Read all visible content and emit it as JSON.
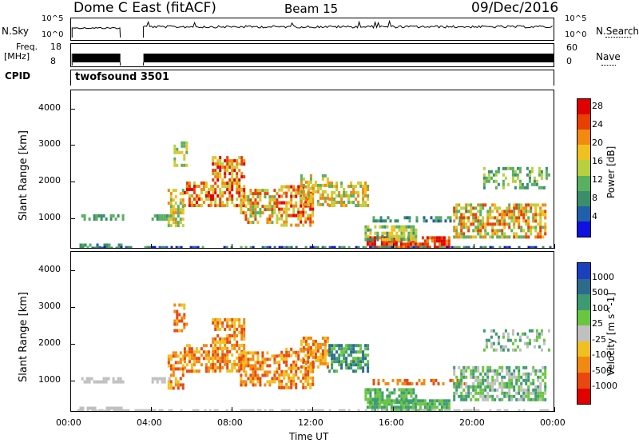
{
  "header": {
    "title": "Dome C East (fitACF)",
    "beam": "Beam 15",
    "date": "09/Dec/2016"
  },
  "top_panels": {
    "nsky_label": "N.Sky",
    "nsky_ticks": [
      "10^5",
      "10^0"
    ],
    "nsearch_label": "N.Search",
    "nsearch_ticks": [
      "10^5",
      "10^0"
    ],
    "freq_label_1": "Freq.",
    "freq_label_2": "[MHz]",
    "freq_ticks": [
      "18",
      "8"
    ],
    "nave_label": "Nave",
    "nave_ticks": [
      "60",
      "0"
    ],
    "cpid_label": "CPID",
    "cpid_value": "twofsound 3501"
  },
  "colors": {
    "power": [
      "#1010e0",
      "#2060a8",
      "#3a8f6a",
      "#59b060",
      "#b8d040",
      "#f0c020",
      "#f08a10",
      "#e84000",
      "#e00000"
    ],
    "velocity": [
      "#1a40c0",
      "#2d6b8c",
      "#3e9a72",
      "#6ac640",
      "#c0c0c0",
      "#f0c020",
      "#f08a10",
      "#e84810",
      "#e00000"
    ]
  },
  "chart_data": [
    {
      "type": "heatmap",
      "name": "Power",
      "ylabel": "Slant Range [km]",
      "ylim": [
        180,
        4500
      ],
      "y_ticks": [
        1000,
        2000,
        3000,
        4000
      ],
      "x_range": [
        0,
        24
      ],
      "colorbar_label": "Power [dB]",
      "colorbar_ticks": [
        "4",
        "8",
        "12",
        "16",
        "20",
        "24",
        "28"
      ],
      "colorbar_range": [
        0,
        30
      ]
    },
    {
      "type": "heatmap",
      "name": "Velocity",
      "ylabel": "Slant Range [km]",
      "ylim": [
        180,
        4500
      ],
      "y_ticks": [
        1000,
        2000,
        3000,
        4000
      ],
      "x_range": [
        0,
        24
      ],
      "colorbar_label": "Velocity [m s^-1]",
      "colorbar_ticks": [
        "1000",
        "500",
        "100",
        "25",
        "-25",
        "-100",
        "-500",
        "-1000"
      ]
    }
  ],
  "x_axis": {
    "label": "Time UT",
    "ticks": [
      "00:00",
      "04:00",
      "08:00",
      "12:00",
      "16:00",
      "20:00",
      "00:00"
    ]
  }
}
